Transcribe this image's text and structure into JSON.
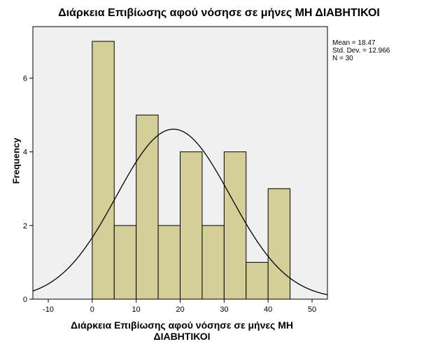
{
  "chart_data": {
    "type": "bar",
    "subtype": "histogram",
    "title": "Διάρκεια Επιβίωσης αφού νόσησε σε μήνες ΜΗ ΔΙΑΒΗΤΙΚΟΙ",
    "xlabel_lines": [
      "Διάρκεια Επιβίωσης αφού νόσησε σε μήνες ΜΗ",
      "ΔΙΑΒΗΤΙΚΟΙ"
    ],
    "ylabel": "Frequency",
    "bin_edges": [
      0,
      5,
      10,
      15,
      20,
      25,
      30,
      35,
      40,
      45
    ],
    "values": [
      7,
      2,
      5,
      2,
      4,
      2,
      4,
      1,
      3
    ],
    "xlim": [
      -13.5,
      53.5
    ],
    "ylim": [
      0,
      7.4
    ],
    "xticks": [
      -10,
      0,
      10,
      20,
      30,
      40,
      50
    ],
    "yticks": [
      0,
      2,
      4,
      6
    ],
    "normal_curve": {
      "mean": 18.47,
      "sd": 12.966,
      "n": 30,
      "bin_width": 5
    },
    "stats_labels": [
      "Mean = 18.47",
      "Std. Dev. = 12.966",
      "N = 30"
    ],
    "colors": {
      "bar_fill": "#d4cf98",
      "plot_background": "#f0f0f0",
      "curve": "#000000"
    },
    "grid": false,
    "legend": "none"
  }
}
